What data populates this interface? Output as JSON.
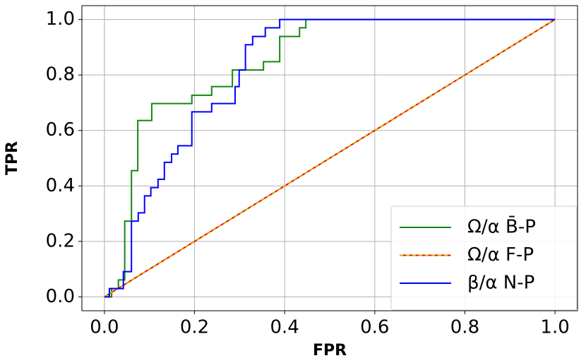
{
  "chart_data": {
    "type": "line",
    "xlabel": "FPR",
    "ylabel": "TPR",
    "xlim": [
      -0.05,
      1.05
    ],
    "ylim": [
      -0.05,
      1.05
    ],
    "xticks": [
      {
        "value": 0,
        "label": "0.0"
      },
      0.2,
      0.4,
      0.6,
      0.8,
      {
        "value": 1,
        "label": "1.0"
      }
    ],
    "yticks": [
      {
        "value": 0,
        "label": "0.0"
      },
      0.2,
      0.4,
      0.6,
      0.8,
      {
        "value": 1,
        "label": "1.0"
      }
    ],
    "grid": true,
    "legend": "lower right",
    "series": [
      {
        "name": "Ω/α B̄-P",
        "color": "#118811",
        "x": [
          0,
          0.016,
          0.016,
          0.031,
          0.031,
          0.045,
          0.045,
          0.06,
          0.06,
          0.074,
          0.074,
          0.105,
          0.105,
          0.194,
          0.194,
          0.238,
          0.238,
          0.284,
          0.284,
          0.353,
          0.353,
          0.389,
          0.389,
          0.433,
          0.433,
          0.447,
          0.447,
          1
        ],
        "values": [
          0,
          0,
          0.03,
          0.03,
          0.061,
          0.061,
          0.273,
          0.273,
          0.455,
          0.455,
          0.636,
          0.636,
          0.697,
          0.697,
          0.727,
          0.727,
          0.758,
          0.758,
          0.818,
          0.818,
          0.848,
          0.848,
          0.939,
          0.939,
          0.97,
          0.97,
          1,
          1
        ]
      },
      {
        "name": "Ω/α F-P",
        "color": "#ff0000",
        "dash_color": "#c8b400",
        "x": [
          0,
          1
        ],
        "values": [
          0,
          1
        ]
      },
      {
        "name": "β/α N-P",
        "color": "#0000ff",
        "x": [
          0,
          0.011,
          0.011,
          0.042,
          0.042,
          0.06,
          0.06,
          0.075,
          0.075,
          0.089,
          0.089,
          0.103,
          0.103,
          0.119,
          0.119,
          0.133,
          0.133,
          0.149,
          0.149,
          0.163,
          0.163,
          0.194,
          0.194,
          0.238,
          0.238,
          0.29,
          0.29,
          0.299,
          0.299,
          0.313,
          0.313,
          0.329,
          0.329,
          0.357,
          0.357,
          0.389,
          0.389,
          1
        ],
        "values": [
          0,
          0,
          0.03,
          0.03,
          0.091,
          0.091,
          0.273,
          0.273,
          0.303,
          0.303,
          0.364,
          0.364,
          0.394,
          0.394,
          0.424,
          0.424,
          0.485,
          0.485,
          0.515,
          0.515,
          0.545,
          0.545,
          0.667,
          0.667,
          0.697,
          0.697,
          0.758,
          0.758,
          0.818,
          0.818,
          0.909,
          0.909,
          0.939,
          0.939,
          0.97,
          0.97,
          1,
          1
        ]
      }
    ]
  }
}
